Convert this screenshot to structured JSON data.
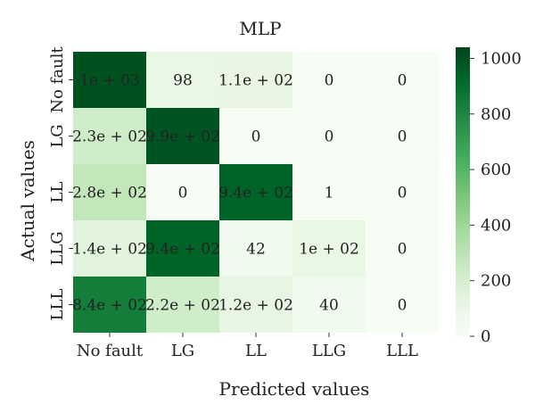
{
  "chart_data": {
    "type": "heatmap",
    "title": "MLP",
    "xlabel": "Predicted values",
    "ylabel": "Actual values",
    "x_categories": [
      "No fault",
      "LG",
      "LL",
      "LLG",
      "LLL"
    ],
    "y_categories": [
      "No fault",
      "LG",
      "LL",
      "LLG",
      "LLL"
    ],
    "values": [
      [
        1000,
        98,
        110,
        0,
        0
      ],
      [
        230,
        990,
        0,
        0,
        0
      ],
      [
        280,
        0,
        940,
        1,
        0
      ],
      [
        140,
        940,
        42,
        100,
        0
      ],
      [
        840,
        220,
        120,
        40,
        0
      ]
    ],
    "cell_labels": [
      [
        "1e + 03",
        "98",
        "1.1e + 02",
        "0",
        "0"
      ],
      [
        "2.3e + 02",
        "9.9e + 02",
        "0",
        "0",
        "0"
      ],
      [
        "2.8e + 02",
        "0",
        "9.4e + 02",
        "1",
        "0"
      ],
      [
        "1.4e + 02",
        "9.4e + 02",
        "42",
        "1e + 02",
        "0"
      ],
      [
        "8.4e + 02",
        "2.2e + 02",
        "1.2e + 02",
        "40",
        "0"
      ]
    ],
    "colorbar": {
      "min": 0,
      "max": 1040,
      "ticks": [
        0,
        200,
        400,
        600,
        800,
        1000
      ],
      "tick_labels": [
        "0",
        "200",
        "400",
        "600",
        "800",
        "1000"
      ]
    },
    "colors": {
      "low": "#f7fcf5",
      "high": "#00441b"
    }
  }
}
